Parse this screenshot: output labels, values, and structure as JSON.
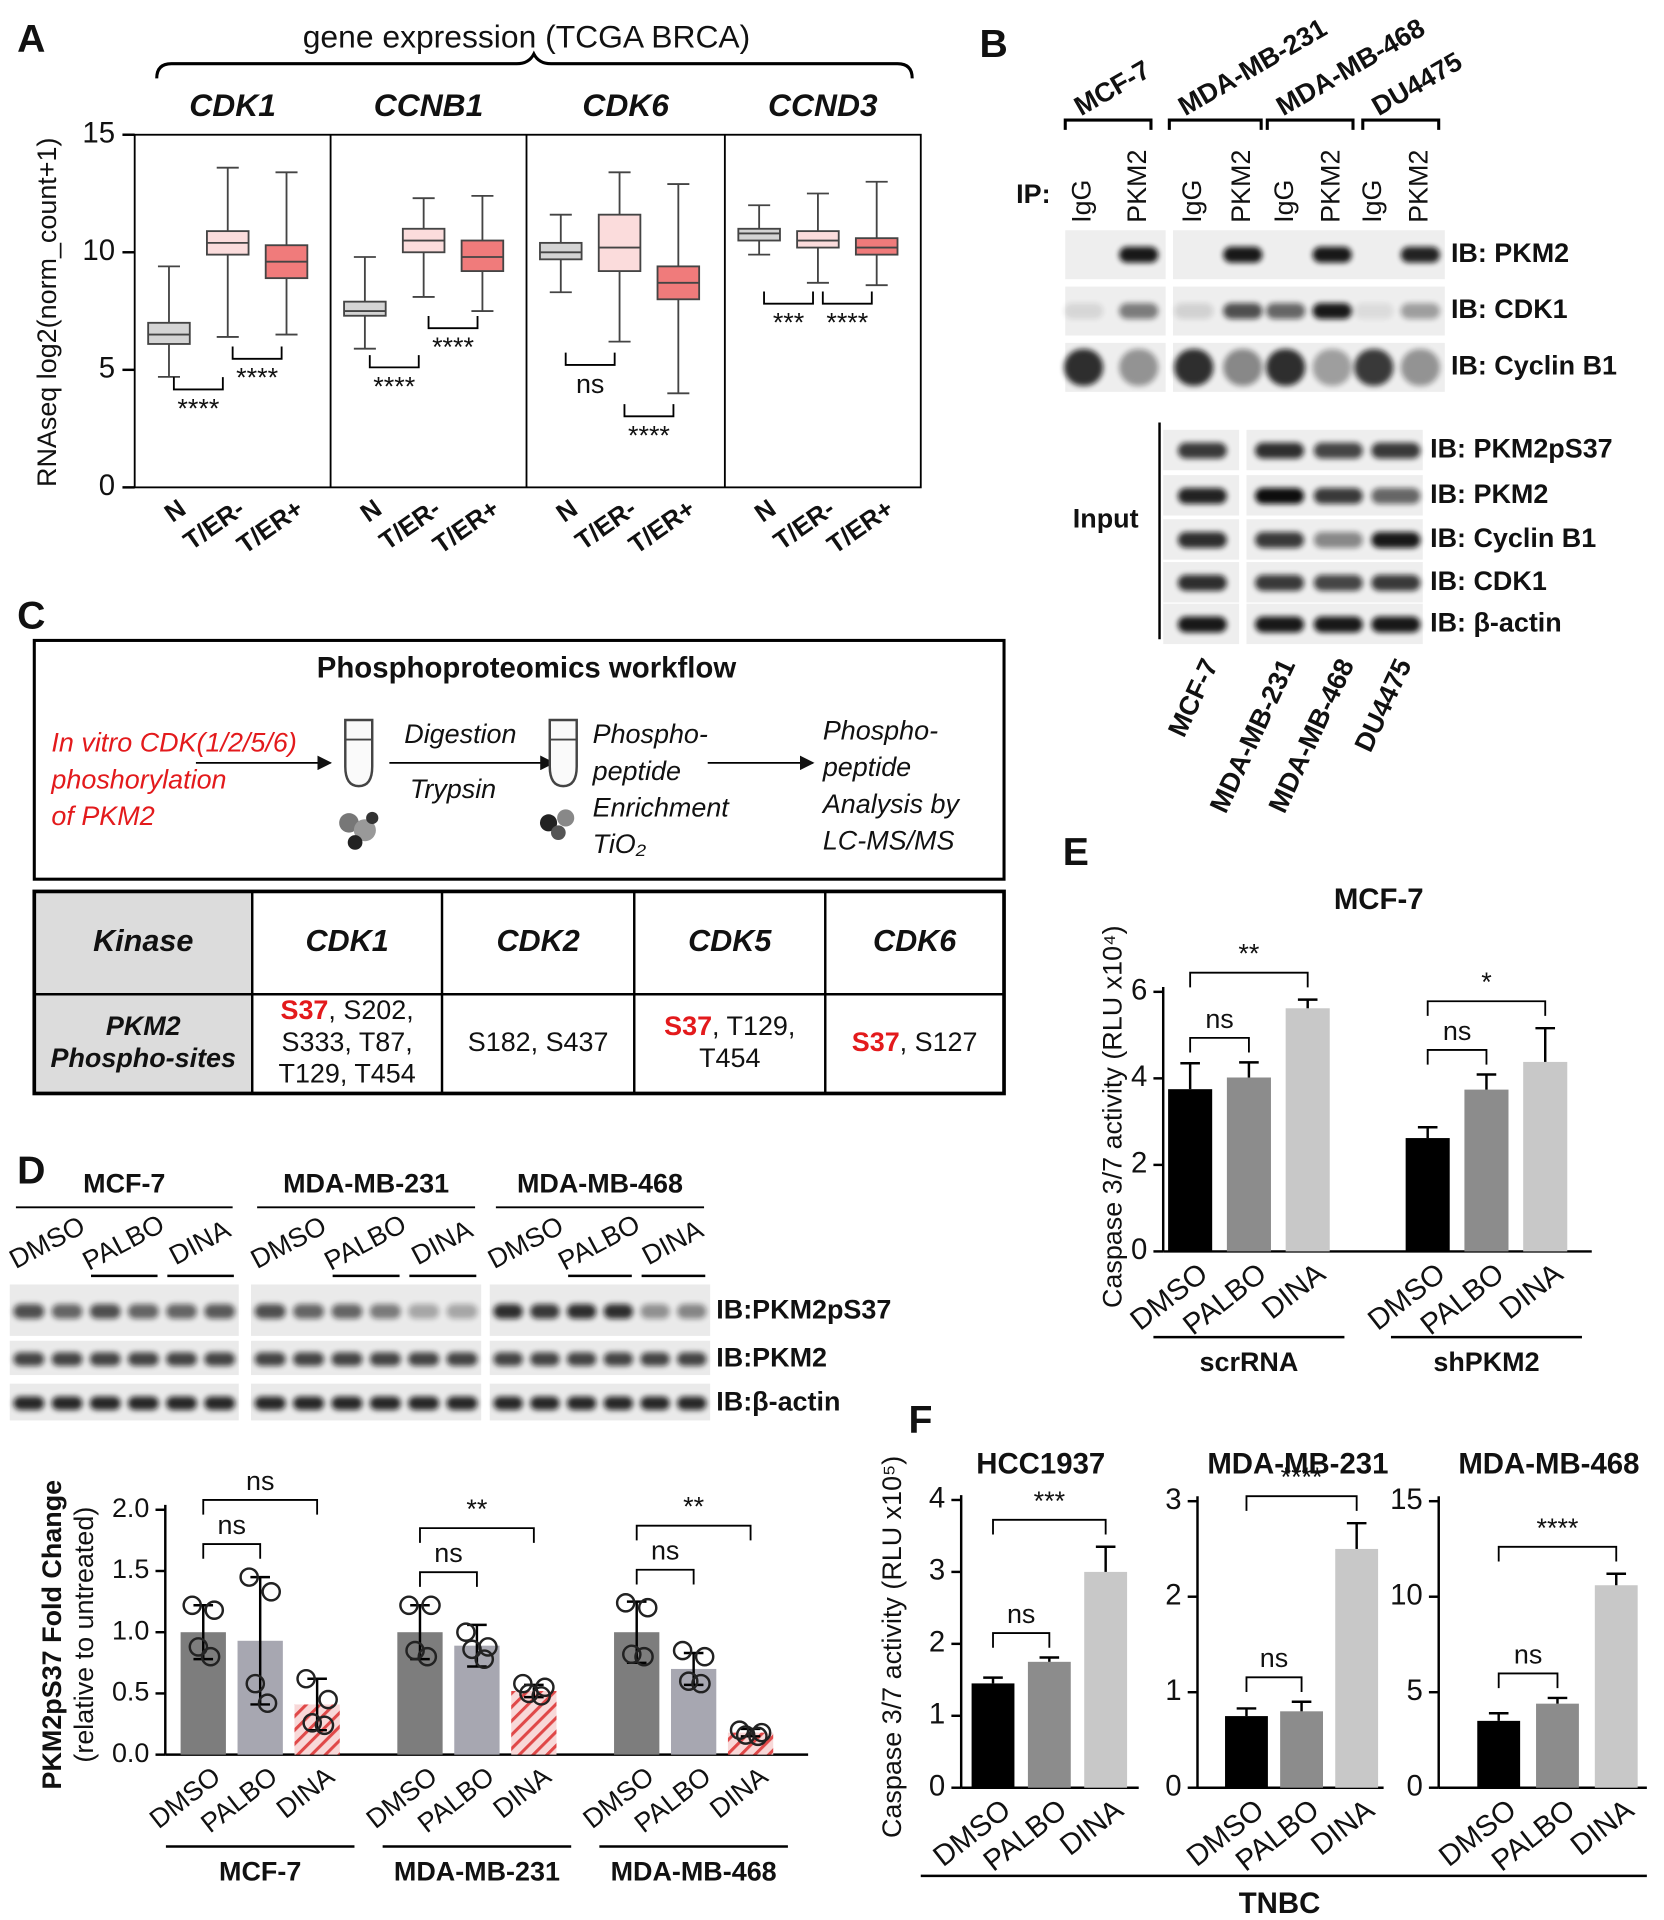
{
  "panel_labels": [
    "A",
    "B",
    "C",
    "D",
    "E",
    "F"
  ],
  "chart_data": [
    {
      "type": "box",
      "title": "gene expression (TCGA BRCA)",
      "y_label": "RNAseq log2(norm_count+1)",
      "ylim": [
        0,
        15
      ],
      "yticks": [
        0,
        5,
        10,
        15
      ],
      "categories": [
        "N",
        "T/ER-",
        "T/ER+"
      ],
      "colors": [
        "#d4d4d4",
        "#fbdcdc",
        "#f07b7b"
      ],
      "panels": [
        {
          "title": "CDK1",
          "boxes": [
            {
              "min": 4.7,
              "q1": 6.1,
              "median": 6.5,
              "q3": 7.0,
              "max": 9.4
            },
            {
              "min": 6.4,
              "q1": 9.9,
              "median": 10.4,
              "q3": 10.9,
              "max": 13.6
            },
            {
              "min": 6.5,
              "q1": 8.9,
              "median": 9.6,
              "q3": 10.3,
              "max": 13.4
            }
          ],
          "annotations": [
            "****",
            "****"
          ]
        },
        {
          "title": "CCNB1",
          "boxes": [
            {
              "min": 5.9,
              "q1": 7.3,
              "median": 7.5,
              "q3": 7.9,
              "max": 9.8
            },
            {
              "min": 8.1,
              "q1": 10.0,
              "median": 10.5,
              "q3": 11.0,
              "max": 12.3
            },
            {
              "min": 7.5,
              "q1": 9.2,
              "median": 9.8,
              "q3": 10.5,
              "max": 12.4
            }
          ],
          "annotations": [
            "****",
            "****"
          ]
        },
        {
          "title": "CDK6",
          "boxes": [
            {
              "min": 8.3,
              "q1": 9.7,
              "median": 10.0,
              "q3": 10.4,
              "max": 11.6
            },
            {
              "min": 6.2,
              "q1": 9.2,
              "median": 10.2,
              "q3": 11.6,
              "max": 13.4
            },
            {
              "min": 4.0,
              "q1": 8.0,
              "median": 8.7,
              "q3": 9.4,
              "max": 12.9
            }
          ],
          "annotations": [
            "ns",
            "****"
          ]
        },
        {
          "title": "CCND3",
          "boxes": [
            {
              "min": 9.9,
              "q1": 10.5,
              "median": 10.8,
              "q3": 11.0,
              "max": 12.0
            },
            {
              "min": 8.7,
              "q1": 10.2,
              "median": 10.5,
              "q3": 10.9,
              "max": 12.5
            },
            {
              "min": 8.6,
              "q1": 9.9,
              "median": 10.2,
              "q3": 10.6,
              "max": 13.0
            }
          ],
          "annotations": [
            "***",
            "****"
          ]
        }
      ]
    },
    {
      "type": "bar",
      "y_label": [
        "PKM2pS37 Fold Change",
        "(relative to untreated)"
      ],
      "ylim": [
        0,
        2
      ],
      "yticks": [
        {
          "value": 0,
          "label": "0.0"
        },
        0.5,
        {
          "value": 1,
          "label": "1.0"
        },
        1.5,
        {
          "value": 2,
          "label": "2.0"
        }
      ],
      "error_bars": "both",
      "categories": [
        "MCF-7",
        "MDA-MB-231",
        "MDA-MB-468"
      ],
      "series": [
        {
          "name": "DMSO",
          "color": "#7d7d7d",
          "values": [
            1.0,
            1.0,
            1.0
          ],
          "errors": [
            0.22,
            0.22,
            0.25
          ],
          "points": [
            [
              1.22,
              1.18,
              0.88,
              0.8
            ],
            [
              1.22,
              1.22,
              0.85,
              0.8
            ],
            [
              1.24,
              1.2,
              0.82,
              0.8
            ]
          ]
        },
        {
          "name": "PALBO",
          "color": "#a7a7b1",
          "values": [
            0.93,
            0.89,
            0.7
          ],
          "errors": [
            0.52,
            0.17,
            0.13
          ],
          "points": [
            [
              1.45,
              1.33,
              0.58,
              0.42
            ],
            [
              1.0,
              0.88,
              0.86,
              0.78
            ],
            [
              0.85,
              0.8,
              0.6,
              0.58
            ]
          ]
        },
        {
          "name": "DINA",
          "color": "#e04848",
          "pattern": "hatch",
          "values": [
            0.41,
            0.52,
            0.18
          ],
          "errors": [
            0.21,
            0.05,
            0.03
          ],
          "points": [
            [
              0.62,
              0.45,
              0.26,
              0.24
            ],
            [
              0.58,
              0.55,
              0.5,
              0.48
            ],
            [
              0.2,
              0.18,
              0.16,
              0.15
            ]
          ]
        }
      ],
      "annotations": [
        [
          "ns",
          "ns"
        ],
        [
          "ns",
          "**"
        ],
        [
          "ns",
          "**"
        ]
      ]
    },
    {
      "type": "bar",
      "title": "MCF-7",
      "y_label": "Caspase 3/7 activity (RLU x10⁴)",
      "ylim": [
        0,
        6
      ],
      "yticks": [
        0,
        2,
        4,
        6
      ],
      "error_bars": "upper",
      "categories": [
        "scrRNA",
        "shPKM2"
      ],
      "series": [
        {
          "name": "DMSO",
          "color": "#000000",
          "values": [
            3.75,
            2.62
          ],
          "errors": [
            0.6,
            0.25
          ]
        },
        {
          "name": "PALBO",
          "color": "#8c8c8c",
          "values": [
            4.02,
            3.74
          ],
          "errors": [
            0.35,
            0.35
          ]
        },
        {
          "name": "DINA",
          "color": "#c8c8c8",
          "values": [
            5.62,
            4.38
          ],
          "errors": [
            0.2,
            0.78
          ]
        }
      ],
      "annotations": [
        [
          "ns",
          "**"
        ],
        [
          "ns",
          "*"
        ]
      ]
    },
    {
      "type": "bar",
      "title": "HCC1937",
      "ylim": [
        0,
        4
      ],
      "yticks": [
        0,
        1,
        2,
        3,
        4
      ],
      "error_bars": "upper",
      "series": [
        {
          "name": "DMSO",
          "color": "#000000",
          "values": [
            1.45
          ],
          "errors": [
            0.08
          ]
        },
        {
          "name": "PALBO",
          "color": "#8c8c8c",
          "values": [
            1.75
          ],
          "errors": [
            0.06
          ]
        },
        {
          "name": "DINA",
          "color": "#c8c8c8",
          "values": [
            3.0
          ],
          "errors": [
            0.35
          ]
        }
      ],
      "annotations": [
        [
          "ns",
          "***"
        ]
      ]
    },
    {
      "type": "bar",
      "title": "MDA-MB-231",
      "ylim": [
        0,
        3
      ],
      "yticks": [
        0,
        1,
        2,
        3
      ],
      "error_bars": "upper",
      "series": [
        {
          "name": "DMSO",
          "color": "#000000",
          "values": [
            0.75
          ],
          "errors": [
            0.08
          ]
        },
        {
          "name": "PALBO",
          "color": "#8c8c8c",
          "values": [
            0.8
          ],
          "errors": [
            0.1
          ]
        },
        {
          "name": "DINA",
          "color": "#c8c8c8",
          "values": [
            2.5
          ],
          "errors": [
            0.27
          ]
        }
      ],
      "annotations": [
        [
          "ns",
          "****"
        ]
      ]
    },
    {
      "type": "bar",
      "title": "MDA-MB-468",
      "ylim": [
        0,
        15
      ],
      "yticks": [
        0,
        5,
        10,
        15
      ],
      "error_bars": "upper",
      "series": [
        {
          "name": "DMSO",
          "color": "#000000",
          "values": [
            3.5
          ],
          "errors": [
            0.4
          ]
        },
        {
          "name": "PALBO",
          "color": "#8c8c8c",
          "values": [
            4.4
          ],
          "errors": [
            0.3
          ]
        },
        {
          "name": "DINA",
          "color": "#c8c8c8",
          "values": [
            10.6
          ],
          "errors": [
            0.6
          ]
        }
      ],
      "annotations": [
        [
          "ns",
          "****"
        ]
      ]
    }
  ],
  "panel_f": {
    "y_label": "Caspase 3/7 activity (RLU x10⁵)",
    "group_label": "TNBC"
  },
  "blot_b": {
    "ip_label": "IP:",
    "cell_lines": [
      "MCF-7",
      "MDA-MB-231",
      "MDA-MB-468",
      "DU4475"
    ],
    "lanes": [
      "IgG",
      "PKM2"
    ],
    "ip_blots": [
      "IB: PKM2",
      "IB: CDK1",
      "IB: Cyclin B1"
    ],
    "input_label": "Input",
    "input_blots": [
      "IB: PKM2pS37",
      "IB: PKM2",
      "IB: Cyclin B1",
      "IB: CDK1",
      "IB: β-actin"
    ]
  },
  "workflow": {
    "title": "Phosphoproteomics workflow",
    "steps": [
      [
        "In vitro CDK(1/2/5/6)",
        "phoshorylation",
        "of  PKM2"
      ],
      [
        "Digestion",
        "Trypsin"
      ],
      [
        "Phospho-",
        "peptide",
        "Enrichment",
        "TiO₂"
      ],
      [
        "Phospho-",
        "peptide",
        "Analysis by",
        "LC-MS/MS"
      ]
    ]
  },
  "table": {
    "rows": [
      [
        [
          [
            "Kinase"
          ]
        ],
        [
          [
            "CDK1"
          ]
        ],
        [
          [
            "CDK2"
          ]
        ],
        [
          [
            "CDK5"
          ]
        ],
        [
          [
            "CDK6"
          ]
        ]
      ],
      [
        [
          [
            "PKM2"
          ],
          [
            "Phospho-sites"
          ]
        ],
        [
          [
            {
              "text": "S37",
              "color": "#e31a1c"
            },
            ", S202,"
          ],
          [
            "S333, T87,"
          ],
          [
            "T129, T454"
          ]
        ],
        [
          [
            "S182, S437"
          ]
        ],
        [
          [
            {
              "text": "S37",
              "color": "#e31a1c"
            },
            ", T129,"
          ],
          [
            "T454"
          ]
        ],
        [
          [
            {
              "text": "S37",
              "color": "#e31a1c"
            },
            ", S127"
          ]
        ]
      ]
    ]
  },
  "blot_d": {
    "cell_lines": [
      "MCF-7",
      "MDA-MB-231",
      "MDA-MB-468"
    ],
    "treatments": [
      "DMSO",
      "PALBO",
      "DINA"
    ],
    "blots": [
      "IB:PKM2pS37",
      "IB:PKM2",
      "IB:β-actin"
    ]
  }
}
